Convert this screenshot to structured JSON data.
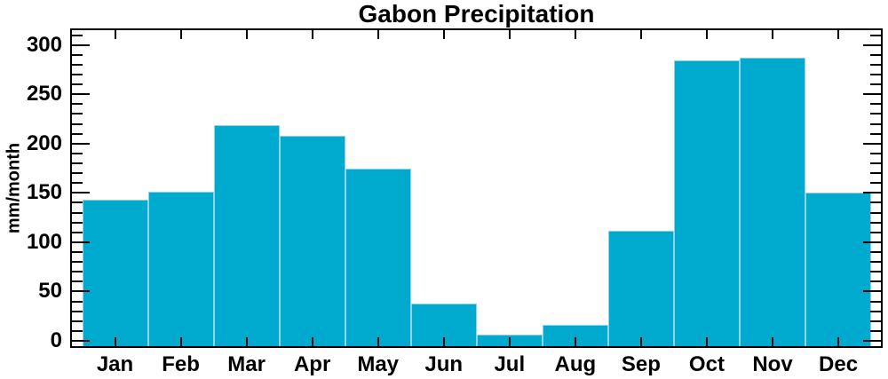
{
  "chart_data": {
    "type": "bar",
    "title": "Gabon Precipitation",
    "ylabel": "mm/month",
    "xlabel": "",
    "categories": [
      "Jan",
      "Feb",
      "Mar",
      "Apr",
      "May",
      "Jun",
      "Jul",
      "Aug",
      "Sep",
      "Oct",
      "Nov",
      "Dec"
    ],
    "values": [
      143,
      151,
      219,
      208,
      175,
      38,
      6,
      16,
      112,
      284,
      287,
      150
    ],
    "ylim": [
      -6,
      316
    ],
    "y_major_ticks": [
      0,
      50,
      100,
      150,
      200,
      250,
      300
    ],
    "y_minor_step": 10,
    "legend": "none",
    "grid": "off",
    "bar_color": "#00a9ce",
    "bar_edge_color": "#8dd6e6",
    "axis_color": "#000000",
    "text_color": "#000000",
    "background_color": "#ffffff"
  }
}
